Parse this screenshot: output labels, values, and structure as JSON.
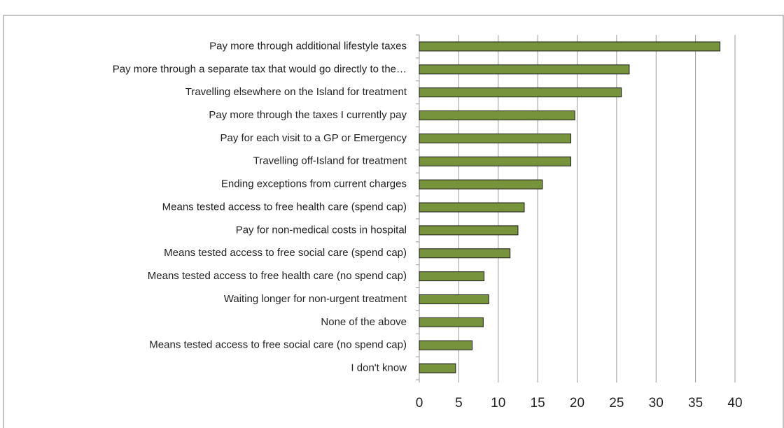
{
  "chart_data": {
    "type": "bar",
    "orientation": "horizontal",
    "categories": [
      "Pay more through additional lifestyle taxes",
      "Pay more through a separate tax that would go directly to the…",
      "Travelling elsewhere on the Island for treatment",
      "Pay more through the taxes I currently pay",
      "Pay for each visit to a GP or Emergency",
      "Travelling off-Island for treatment",
      "Ending exceptions from current charges",
      "Means tested access to free health care (spend cap)",
      "Pay for non-medical costs in hospital",
      "Means tested access to free social care (spend cap)",
      "Means tested access to free health care (no spend cap)",
      "Waiting longer for non-urgent treatment",
      "None of the above",
      "Means tested access to free social care (no spend cap)",
      "I don't know"
    ],
    "values": [
      38.1,
      26.6,
      25.6,
      19.7,
      19.2,
      19.2,
      15.6,
      13.3,
      12.5,
      11.5,
      8.2,
      8.8,
      8.1,
      6.7,
      4.6
    ],
    "color": "#77933c",
    "xlim": [
      0,
      40
    ],
    "xticks": [
      0,
      5,
      10,
      15,
      20,
      25,
      30,
      35,
      40
    ],
    "grid": true
  }
}
